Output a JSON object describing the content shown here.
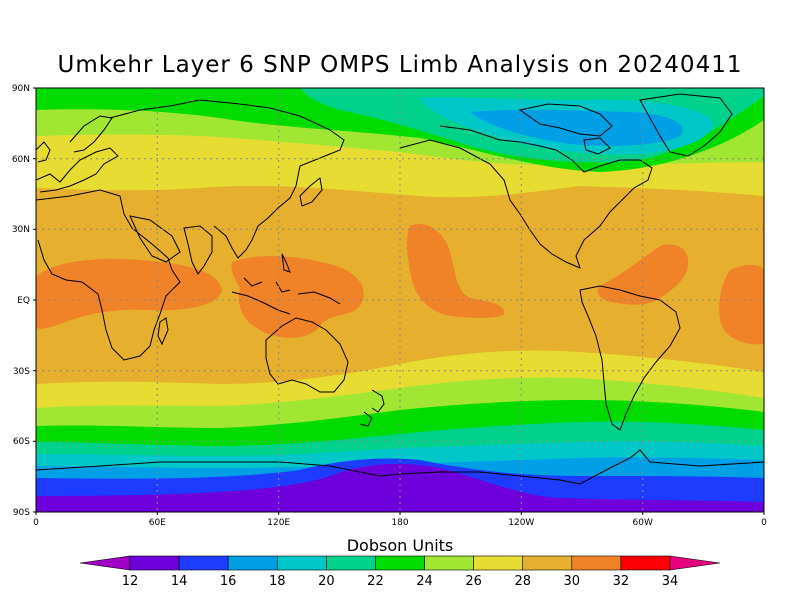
{
  "title": "Umkehr Layer 6 SNP OMPS Limb Analysis on 20240411",
  "map": {
    "lat_labels": [
      "90N",
      "60N",
      "30N",
      "EQ",
      "30S",
      "60S",
      "90S"
    ],
    "lon_labels": [
      "0",
      "60E",
      "120E",
      "180",
      "120W",
      "60W",
      "0"
    ]
  },
  "colorbar": {
    "title": "Dobson Units",
    "tick_labels": [
      "12",
      "14",
      "16",
      "18",
      "20",
      "22",
      "24",
      "26",
      "28",
      "30",
      "32",
      "34"
    ],
    "colors": [
      "#a000c8",
      "#6e00dc",
      "#1e3cff",
      "#00a0e6",
      "#00c8c8",
      "#00d28c",
      "#00dc00",
      "#a0e632",
      "#e6dc32",
      "#e6af2d",
      "#f08228",
      "#fa0000",
      "#e6007a"
    ]
  },
  "chart_data": {
    "type": "heatmap",
    "title": "Umkehr Layer 6 SNP OMPS Limb Analysis on 20240411",
    "units": "Dobson Units",
    "xlim": [
      0,
      360
    ],
    "ylim": [
      -90,
      90
    ],
    "zonal_bands": [
      {
        "lat_from": 90,
        "lat_to": 70,
        "value_range": [
          22,
          24
        ]
      },
      {
        "lat_from": 70,
        "lat_to": 60,
        "value_range": [
          24,
          26
        ]
      },
      {
        "lat_from": 60,
        "lat_to": 50,
        "value_range": [
          26,
          28
        ]
      },
      {
        "lat_from": 50,
        "lat_to": 35,
        "value_range": [
          28,
          30
        ]
      },
      {
        "lat_from": 35,
        "lat_to": -25,
        "value_range": [
          28,
          30
        ]
      },
      {
        "lat_from": -25,
        "lat_to": -38,
        "value_range": [
          26,
          28
        ]
      },
      {
        "lat_from": -38,
        "lat_to": -48,
        "value_range": [
          24,
          26
        ]
      },
      {
        "lat_from": -48,
        "lat_to": -55,
        "value_range": [
          22,
          24
        ]
      },
      {
        "lat_from": -55,
        "lat_to": -62,
        "value_range": [
          20,
          22
        ]
      },
      {
        "lat_from": -62,
        "lat_to": -70,
        "value_range": [
          18,
          20
        ]
      },
      {
        "lat_from": -70,
        "lat_to": -76,
        "value_range": [
          16,
          18
        ]
      },
      {
        "lat_from": -76,
        "lat_to": -90,
        "value_range": [
          12,
          16
        ]
      }
    ],
    "maxima_regions": [
      {
        "region": "Africa / Indian Ocean tropics",
        "value_range": [
          30,
          32
        ]
      },
      {
        "region": "Maritime Continent / West Pacific",
        "value_range": [
          30,
          32
        ]
      },
      {
        "region": "Central Pacific tropics",
        "value_range": [
          30,
          32
        ]
      },
      {
        "region": "Tropical Atlantic",
        "value_range": [
          30,
          32
        ]
      }
    ],
    "minima_regions": [
      {
        "region": "Canadian Arctic / Greenland",
        "value_range": [
          18,
          22
        ]
      },
      {
        "region": "Antarctica near 180",
        "value_range": [
          12,
          14
        ]
      }
    ]
  }
}
